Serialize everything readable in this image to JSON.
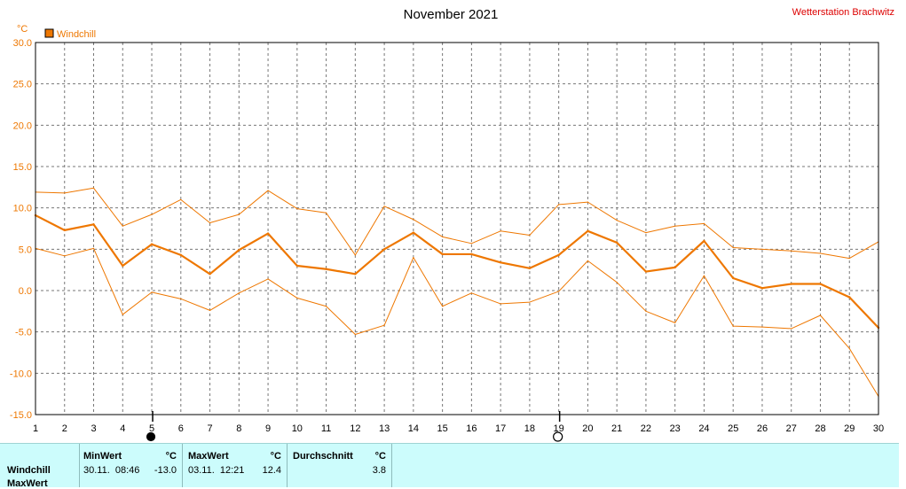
{
  "header": {
    "title": "November 2021",
    "station": "Wetterstation Brachwitz"
  },
  "chart_data": {
    "type": "line",
    "title": "November 2021",
    "ylabel": "°C",
    "ylim": [
      -15,
      30
    ],
    "yticks": [
      "30.0",
      "25.0",
      "20.0",
      "15.0",
      "10.0",
      "5.0",
      "0.0",
      "-5.0",
      "-10.0",
      "-15.0"
    ],
    "xlim": [
      1,
      30
    ],
    "x": [
      1,
      2,
      3,
      4,
      5,
      6,
      7,
      8,
      9,
      10,
      11,
      12,
      13,
      14,
      15,
      16,
      17,
      18,
      19,
      20,
      21,
      22,
      23,
      24,
      25,
      26,
      27,
      28,
      29,
      30
    ],
    "grid": true,
    "legend": {
      "position": "top-left",
      "label": "Windchill",
      "color": "#ee7700"
    },
    "series": [
      {
        "name": "Windchill",
        "role": "average",
        "color": "#ee7700",
        "values": [
          9.1,
          7.3,
          8.0,
          3.0,
          5.6,
          4.3,
          2.0,
          4.9,
          6.9,
          3.0,
          2.6,
          2.0,
          5.0,
          7.0,
          4.4,
          4.4,
          3.4,
          2.7,
          4.3,
          7.2,
          5.8,
          2.3,
          2.8,
          6.0,
          1.5,
          0.3,
          0.8,
          0.8,
          -0.8,
          -4.5
        ]
      },
      {
        "role": "max",
        "color": "#ee7700",
        "values": [
          11.9,
          11.8,
          12.4,
          7.8,
          9.2,
          11.0,
          8.2,
          9.2,
          12.1,
          9.9,
          9.4,
          4.3,
          10.2,
          8.6,
          6.5,
          5.7,
          7.2,
          6.7,
          10.4,
          10.7,
          8.5,
          7.0,
          7.8,
          8.1,
          5.2,
          5.0,
          4.8,
          4.5,
          3.9,
          5.9
        ]
      },
      {
        "role": "min",
        "color": "#ee7700",
        "values": [
          5.1,
          4.2,
          5.1,
          -2.9,
          -0.2,
          -1.0,
          -2.4,
          -0.3,
          1.4,
          -0.9,
          -1.9,
          -5.3,
          -4.2,
          4.0,
          -1.9,
          -0.3,
          -1.6,
          -1.4,
          -0.1,
          3.6,
          1.0,
          -2.5,
          -3.9,
          1.8,
          -4.3,
          -4.4,
          -4.6,
          -3.0,
          -7.0,
          -12.8
        ]
      }
    ],
    "moon_phases": [
      {
        "day": 5,
        "phase": "new-moon"
      },
      {
        "day": 19,
        "phase": "full-moon"
      }
    ]
  },
  "stats": {
    "row_label": "Windchill",
    "row_label2": "MaxWert",
    "min": {
      "header": "MinWert",
      "unit": "°C",
      "datetime": "30.11.  08:46",
      "value": "-13.0"
    },
    "max": {
      "header": "MaxWert",
      "unit": "°C",
      "datetime": "03.11.  12:21",
      "value": "12.4"
    },
    "avg": {
      "header": "Durchschnitt",
      "unit": "°C",
      "value": "3.8"
    }
  }
}
